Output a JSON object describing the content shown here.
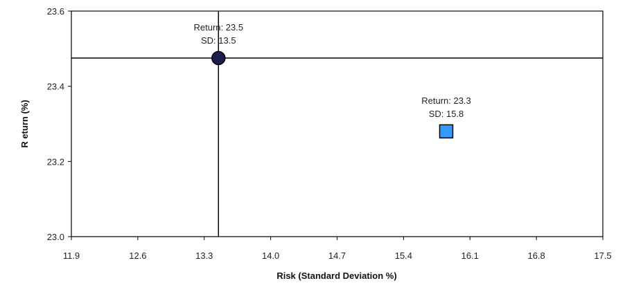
{
  "chart_data": {
    "type": "scatter",
    "xlabel": "Risk (Standard Deviation %)",
    "ylabel": "R eturn  (%)",
    "xlim": [
      11.9,
      17.5
    ],
    "ylim": [
      23.0,
      23.6
    ],
    "x_ticks": [
      "11.9",
      "12.6",
      "13.3",
      "14.0",
      "14.7",
      "15.4",
      "16.1",
      "16.8",
      "17.5"
    ],
    "y_ticks": [
      "23.0",
      "23.2",
      "23.4",
      "23.6"
    ],
    "grid": false,
    "reference_lines": {
      "x": 13.45,
      "y": 23.475,
      "color": "#000000"
    },
    "series": [
      {
        "marker": "circle",
        "color": "#1a1f4f",
        "points": [
          {
            "x": 13.45,
            "y": 23.475,
            "label_lines": [
              "Return: 23.5",
              "SD: 13.5"
            ]
          }
        ]
      },
      {
        "marker": "square",
        "color": "#3399ff",
        "points": [
          {
            "x": 15.85,
            "y": 23.28,
            "label_lines": [
              "Return: 23.3",
              "SD: 15.8"
            ]
          }
        ]
      }
    ]
  }
}
